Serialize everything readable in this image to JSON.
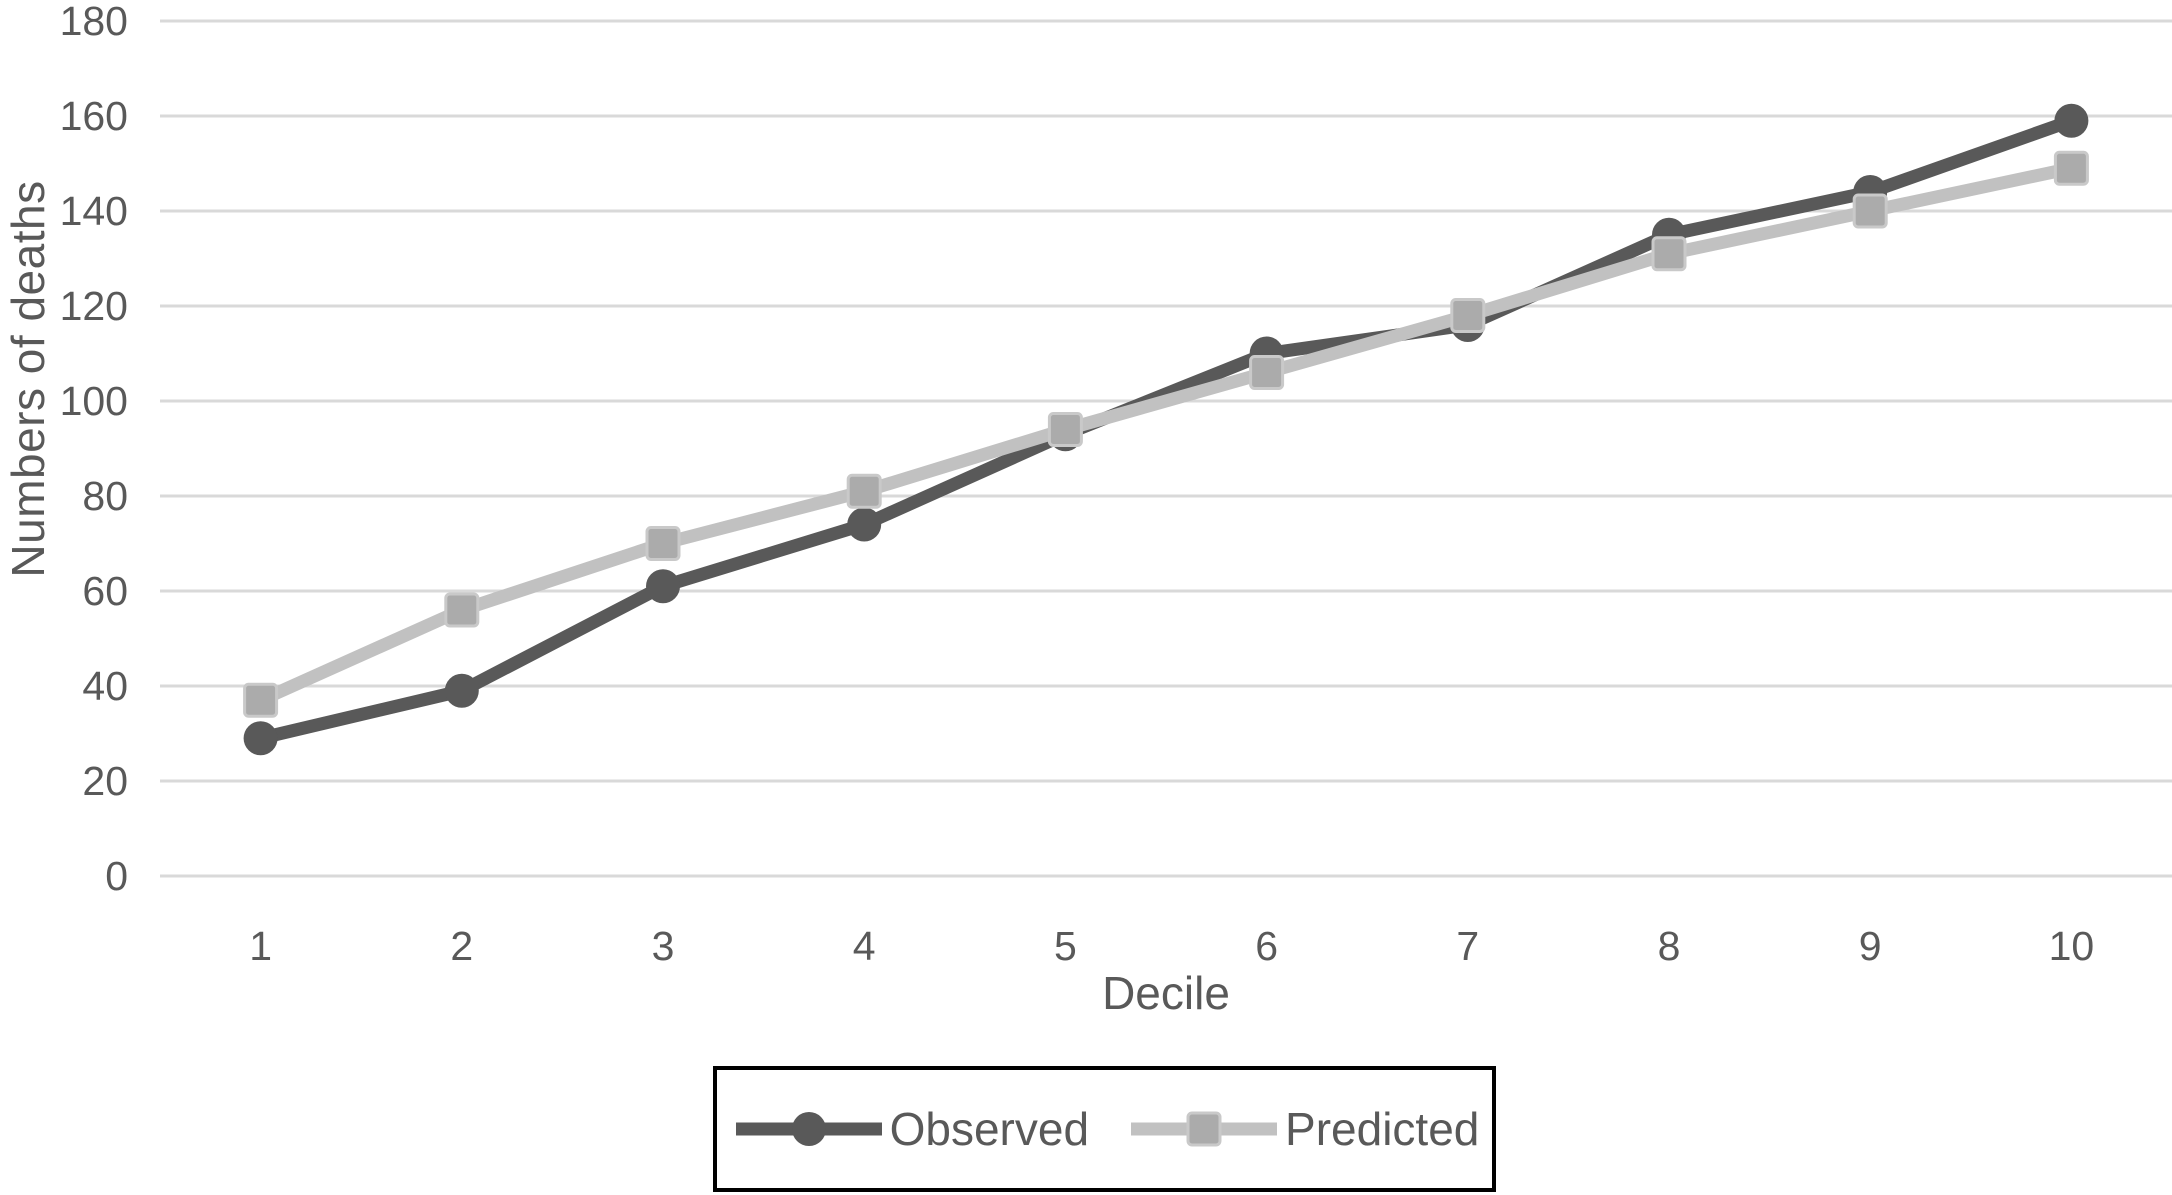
{
  "chart_data": {
    "type": "line",
    "title": "",
    "xlabel": "Decile",
    "ylabel": "Numbers of deaths",
    "categories": [
      "1",
      "2",
      "3",
      "4",
      "5",
      "6",
      "7",
      "8",
      "9",
      "10"
    ],
    "y_ticks": [
      "0",
      "20",
      "40",
      "60",
      "80",
      "100",
      "120",
      "140",
      "160",
      "180"
    ],
    "ylim": [
      0,
      180
    ],
    "grid": "horizontal-only",
    "legend_position": "bottom-boxed",
    "series": [
      {
        "name": "Observed",
        "marker": "circle",
        "line_color": "#595959",
        "marker_fill": "#595959",
        "marker_border": "#595959",
        "values": [
          29,
          39,
          61,
          74,
          93,
          110,
          116,
          135,
          144,
          159
        ]
      },
      {
        "name": "Predicted",
        "marker": "square",
        "line_color": "#c1c1c1",
        "marker_fill": "#ababab",
        "marker_border": "#c9c9c9",
        "values": [
          37,
          56,
          70,
          81,
          94,
          106,
          118,
          131,
          140,
          149
        ]
      }
    ]
  },
  "colors": {
    "background": "#ffffff",
    "gridline": "#d9d9d9",
    "tick_text": "#595959",
    "axis_title_text": "#595959",
    "legend_border": "#000000"
  }
}
